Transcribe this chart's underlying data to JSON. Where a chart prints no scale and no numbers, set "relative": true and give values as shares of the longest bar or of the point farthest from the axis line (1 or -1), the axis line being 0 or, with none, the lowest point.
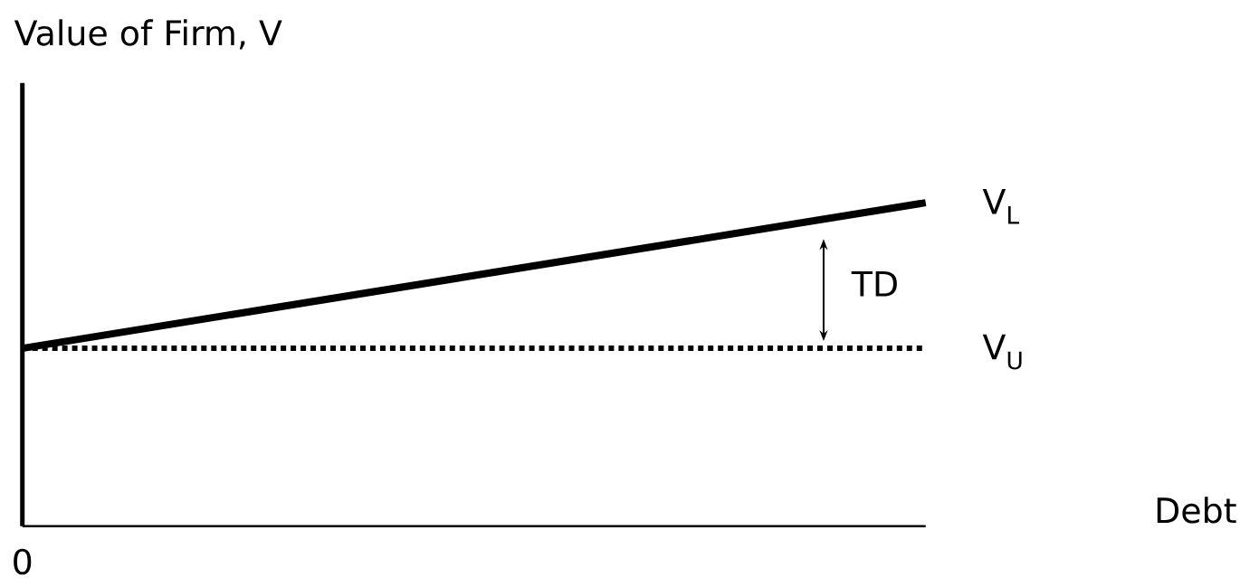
{
  "chart_data": {
    "type": "line",
    "relative": true,
    "ylabel": "Value of Firm, V",
    "xlabel": "Debt",
    "categories": [
      null,
      null
    ],
    "series": [
      {
        "name": "V$_{L}$",
        "color": "#000000",
        "line_style": "solid",
        "values": [
          0.55,
          1
        ]
      },
      {
        "name": "V$_{U}$",
        "color": "#000000",
        "line_style": "dotted",
        "values": [
          0.55,
          0.55
        ]
      }
    ],
    "annotations": [
      "TD",
      "0"
    ],
    "marker": "none"
  }
}
